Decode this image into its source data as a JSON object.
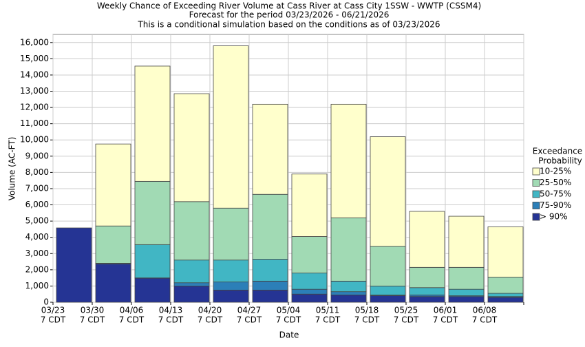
{
  "chart_data": {
    "type": "stacked_bar",
    "title": "Weekly Chance of Exceeding River Volume at Cass River at Cass City 1SSW - WWTP (CSSM4)",
    "subtitle": [
      "Forecast for the period 03/23/2026 - 06/21/2026",
      "This is a conditional simulation based on the conditions as of 03/23/2026"
    ],
    "x_label": "Date",
    "y_label": "Volume (AC-FT)",
    "categories": [
      "03/23",
      "03/30",
      "04/06",
      "04/13",
      "04/20",
      "04/27",
      "05/04",
      "05/11",
      "05/18",
      "05/25",
      "06/01",
      "06/08"
    ],
    "category_suffix": "7 CDT",
    "legend_title": [
      "Exceedance",
      "Probability"
    ],
    "legend_position": "right",
    "series": [
      {
        "name": "> 90%",
        "color": "#253494",
        "values": [
          4580,
          2350,
          1480,
          1000,
          750,
          750,
          500,
          450,
          400,
          350,
          350,
          300
        ]
      },
      {
        "name": "75-90%",
        "color": "#2c7fb8",
        "values": [
          0,
          50,
          20,
          200,
          500,
          550,
          300,
          200,
          50,
          100,
          50,
          50
        ]
      },
      {
        "name": "50-75%",
        "color": "#41b6c4",
        "values": [
          0,
          0,
          2050,
          1400,
          1350,
          1350,
          1000,
          650,
          550,
          450,
          400,
          200
        ]
      },
      {
        "name": "25-50%",
        "color": "#a1dab4",
        "values": [
          0,
          2300,
          3900,
          3600,
          3200,
          4000,
          2250,
          3900,
          2450,
          1250,
          1350,
          1000
        ]
      },
      {
        "name": "10-25%",
        "color": "#ffffcc",
        "values": [
          0,
          5050,
          7100,
          6650,
          10000,
          5550,
          3850,
          7000,
          6750,
          3450,
          3150,
          3100
        ]
      }
    ],
    "ylim": [
      0,
      16500
    ],
    "yticks": [
      0,
      {
        "value": 1000,
        "label": "1,000"
      },
      {
        "value": 2000,
        "label": "2,000"
      },
      {
        "value": 3000,
        "label": "3,000"
      },
      {
        "value": 4000,
        "label": "4,000"
      },
      {
        "value": 5000,
        "label": "5,000"
      },
      {
        "value": 6000,
        "label": "6,000"
      },
      {
        "value": 7000,
        "label": "7,000"
      },
      {
        "value": 8000,
        "label": "8,000"
      },
      {
        "value": 9000,
        "label": "9,000"
      },
      {
        "value": 10000,
        "label": "10,000"
      },
      {
        "value": 11000,
        "label": "11,000"
      },
      {
        "value": 12000,
        "label": "12,000"
      },
      {
        "value": 13000,
        "label": "13,000"
      },
      {
        "value": 14000,
        "label": "14,000"
      },
      {
        "value": 15000,
        "label": "15,000"
      },
      {
        "value": 16000,
        "label": "16,000"
      }
    ],
    "grid": true
  }
}
